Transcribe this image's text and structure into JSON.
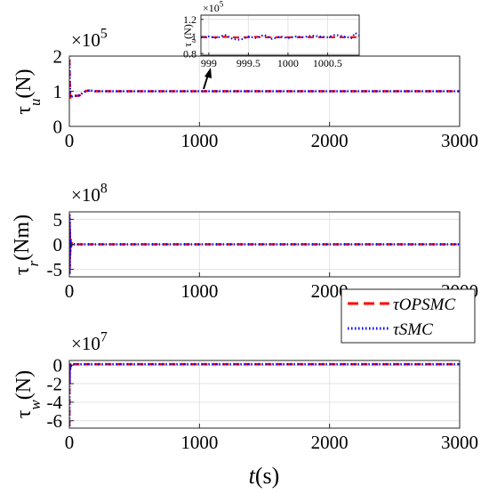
{
  "chart_data": [
    {
      "type": "line",
      "ylabel_symbol": "τ",
      "ylabel_sub": "u",
      "ylabel_unit": "(N)",
      "exponent_base": "×10",
      "exponent_power": "5",
      "xlim": [
        0,
        3000
      ],
      "ylim": [
        0,
        2
      ],
      "xticks": [
        0,
        1000,
        2000,
        3000
      ],
      "yticks": [
        0,
        1,
        2
      ],
      "xtick_labels": [
        "0",
        "1000",
        "2000",
        "3000"
      ],
      "ytick_labels": [
        "0",
        "1",
        "2"
      ],
      "grid": true,
      "series": [
        {
          "name": "τOPSMC",
          "x": [
            0,
            3,
            6,
            10,
            15,
            25,
            40,
            60,
            80,
            100,
            130,
            160,
            200,
            300,
            500,
            1000,
            2000,
            3000
          ],
          "y": [
            1.9,
            1.3,
            0.9,
            0.82,
            0.84,
            0.86,
            0.87,
            0.87,
            0.88,
            0.95,
            1.01,
            1.02,
            1.0,
            1.0,
            1.0,
            1.0,
            1.0,
            1.0
          ]
        },
        {
          "name": "τSMC",
          "x": [
            0,
            3,
            6,
            10,
            15,
            25,
            40,
            60,
            80,
            100,
            130,
            160,
            200,
            300,
            500,
            1000,
            2000,
            3000
          ],
          "y": [
            1.9,
            1.3,
            0.9,
            0.82,
            0.84,
            0.86,
            0.87,
            0.87,
            0.88,
            0.95,
            1.01,
            1.02,
            1.0,
            1.0,
            1.0,
            1.0,
            1.0,
            1.0
          ]
        }
      ]
    },
    {
      "type": "line",
      "ylabel_symbol": "τ",
      "ylabel_sub": "r",
      "ylabel_unit": "(Nm)",
      "exponent_base": "×10",
      "exponent_power": "8",
      "xlim": [
        0,
        3000
      ],
      "ylim": [
        -6.5,
        6.5
      ],
      "xticks": [
        0,
        1000,
        2000,
        3000
      ],
      "yticks": [
        -5,
        0,
        5
      ],
      "xtick_labels": [
        "0",
        "1000",
        "2000",
        "3000"
      ],
      "ytick_labels": [
        "-5",
        "0",
        "5"
      ],
      "grid": true,
      "series": [
        {
          "name": "τOPSMC",
          "x": [
            0,
            1,
            2,
            3,
            4,
            6,
            9,
            13,
            20,
            40,
            100,
            3000
          ],
          "y": [
            6.0,
            -6.0,
            5.0,
            -4.5,
            3.0,
            -2.0,
            1.0,
            -0.5,
            0.2,
            0.0,
            0.0,
            0.0
          ]
        },
        {
          "name": "τSMC",
          "x": [
            0,
            1,
            2,
            3,
            4,
            6,
            9,
            13,
            20,
            40,
            100,
            3000
          ],
          "y": [
            6.0,
            -6.0,
            5.0,
            -4.5,
            3.0,
            -2.0,
            1.0,
            -0.5,
            0.2,
            0.0,
            0.0,
            0.0
          ]
        }
      ]
    },
    {
      "type": "line",
      "ylabel_symbol": "τ",
      "ylabel_sub": "w",
      "ylabel_unit": "(N)",
      "exponent_base": "×10",
      "exponent_power": "7",
      "xlabel_var": "t",
      "xlabel_unit": "(s)",
      "xlim": [
        0,
        3000
      ],
      "ylim": [
        -6.8,
        0.5
      ],
      "xticks": [
        0,
        1000,
        2000,
        3000
      ],
      "yticks": [
        -6,
        -4,
        -2,
        0
      ],
      "xtick_labels": [
        "0",
        "1000",
        "2000",
        "3000"
      ],
      "ytick_labels": [
        "-6",
        "-4",
        "-2",
        "0"
      ],
      "grid": true,
      "series": [
        {
          "name": "τOPSMC",
          "x": [
            0,
            1,
            2,
            3,
            5,
            8,
            12,
            20,
            40,
            3000
          ],
          "y": [
            -6.6,
            0.0,
            -2.0,
            0.1,
            -0.6,
            0.1,
            -0.1,
            0.1,
            0.1,
            0.1
          ]
        },
        {
          "name": "τSMC",
          "x": [
            0,
            1,
            2,
            3,
            5,
            8,
            12,
            20,
            40,
            3000
          ],
          "y": [
            -6.6,
            0.0,
            -2.0,
            0.1,
            -0.6,
            0.1,
            -0.1,
            0.1,
            0.1,
            0.1
          ]
        }
      ]
    },
    {
      "type": "line",
      "role": "inset",
      "ylabel_symbol": "τ",
      "ylabel_sub": "u",
      "ylabel_unit": "(N)",
      "exponent_base": "×10",
      "exponent_power": "5",
      "xlim": [
        998.9,
        1000.9
      ],
      "ylim": [
        0.78,
        1.25
      ],
      "xticks": [
        999,
        999.5,
        1000,
        1000.5
      ],
      "yticks": [
        0.8,
        1.0,
        1.2
      ],
      "xtick_labels": [
        "999",
        "999.5",
        "1000",
        "1000.5"
      ],
      "ytick_labels": [
        "0.8",
        "1",
        "1.2"
      ],
      "grid": true,
      "series": [
        {
          "name": "τOPSMC",
          "x": [
            998.9,
            999.0,
            999.1,
            999.2,
            999.3,
            999.4,
            999.5,
            999.6,
            999.7,
            999.8,
            999.9,
            1000.0,
            1000.1,
            1000.2,
            1000.3,
            1000.4,
            1000.5,
            1000.6,
            1000.7,
            1000.8,
            1000.9
          ],
          "y": [
            0.99,
            0.99,
            0.99,
            0.995,
            0.99,
            0.985,
            0.99,
            0.995,
            0.99,
            0.99,
            0.99,
            0.99,
            0.99,
            0.99,
            0.99,
            0.99,
            0.99,
            0.99,
            0.99,
            0.99,
            0.99
          ]
        },
        {
          "name": "τSMC",
          "x": [
            998.9,
            999.0,
            999.1,
            999.2,
            999.3,
            999.4,
            999.5,
            999.6,
            999.7,
            999.8,
            999.9,
            1000.0,
            1000.1,
            1000.2,
            1000.3,
            1000.4,
            1000.5,
            1000.6,
            1000.7,
            1000.8,
            1000.85,
            1000.9
          ],
          "y": [
            0.99,
            1.0,
            0.98,
            1.02,
            0.97,
            0.96,
            1.0,
            0.98,
            1.02,
            0.97,
            1.0,
            0.98,
            1.0,
            0.99,
            1.01,
            1.0,
            0.99,
            1.02,
            1.0,
            0.98,
            1.04,
            1.01
          ]
        }
      ]
    }
  ],
  "legend": {
    "placement": "right of middle panel",
    "items": [
      {
        "label": "τOPSMC",
        "color": "#ff0000",
        "style": "dashed"
      },
      {
        "label": "τSMC",
        "color": "#0000ff",
        "style": "dotted"
      }
    ]
  },
  "colors": {
    "opsmc": "#ff0000",
    "smc": "#0000ff",
    "grid": "#e3e3e3",
    "axis": "#262626"
  }
}
